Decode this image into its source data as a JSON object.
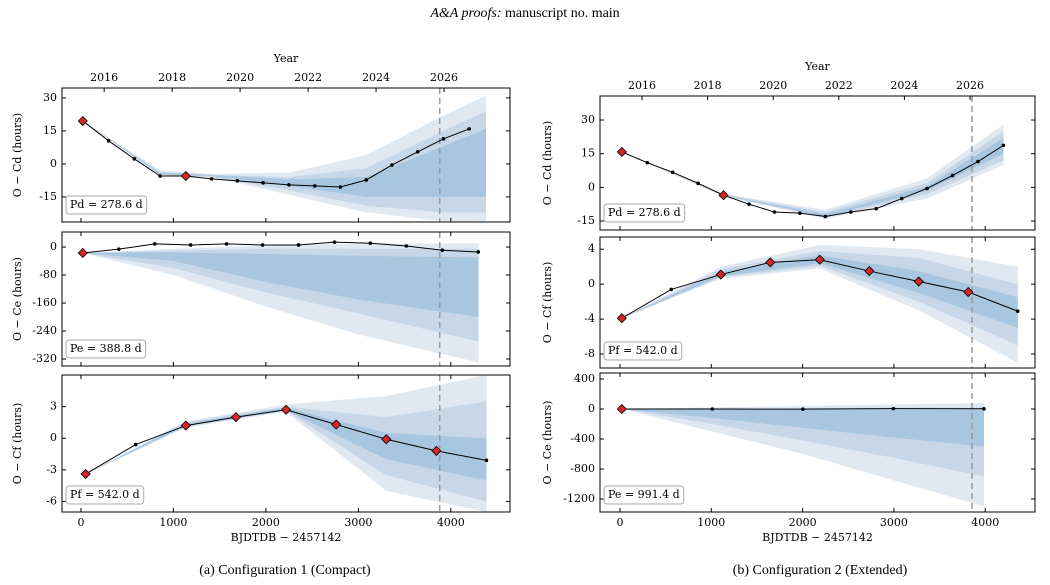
{
  "header_italic": "A&A proofs:",
  "header_rest": "manuscript no. main",
  "captions": [
    "(a) Configuration 1 (Compact)",
    "(b) Configuration 2 (Extended)"
  ],
  "chart_data": [
    {
      "type": "line",
      "x2label": "Year",
      "x2lim": [
        2014.76,
        2027.94
      ],
      "x2ticks": [
        2016,
        2018,
        2020,
        2022,
        2024,
        2026
      ],
      "xlim": [
        -205,
        4640
      ],
      "xticks": [
        0,
        1000,
        2000,
        3000,
        4000
      ],
      "ylim": [
        -26.4,
        34.5
      ],
      "yticks": [
        -15,
        0,
        15,
        30
      ],
      "ylabel": "O − Cd (hours)",
      "annotation": "Pd = 278.6 d",
      "vline": 3880,
      "bands": [
        {
          "color": "#e0e8f2",
          "x": [
            20,
            856,
            1413,
            2249,
            3085,
            3921,
            4380
          ],
          "lower": [
            19.5,
            -5,
            -6,
            -14,
            -22,
            -26,
            -26
          ],
          "upper": [
            19.5,
            -3,
            -4.5,
            -4,
            4,
            22,
            31
          ]
        },
        {
          "color": "#c7d7e8",
          "x": [
            20,
            856,
            1413,
            2249,
            3085,
            3921,
            4380
          ],
          "lower": [
            19.5,
            -5,
            -6,
            -12,
            -19,
            -22,
            -22
          ],
          "upper": [
            19.5,
            -3.5,
            -5,
            -6,
            -2,
            15,
            24
          ]
        },
        {
          "color": "#a8c6df",
          "x": [
            20,
            856,
            1413,
            2249,
            3085,
            3921,
            4380
          ],
          "lower": [
            19.5,
            -4.8,
            -5.5,
            -10,
            -15,
            -15,
            -15
          ],
          "upper": [
            19.5,
            -4,
            -5,
            -7,
            -6,
            8,
            16
          ]
        }
      ],
      "series": [
        {
          "color": "#000000",
          "marker": "dot",
          "x": [
            20,
            299,
            577,
            856,
            1134,
            1413,
            1692,
            1970,
            2249,
            2528,
            2806,
            3085,
            3363,
            3642,
            3921,
            4199
          ],
          "values": [
            19.5,
            10.5,
            2.3,
            -5.5,
            -5.5,
            -6.8,
            -7.7,
            -8.6,
            -9.5,
            -10,
            -10.5,
            -7.3,
            -0.5,
            5.5,
            11.4,
            15.9
          ]
        },
        {
          "color": "#d62728",
          "marker": "diamond",
          "x": [
            20,
            1134
          ],
          "values": [
            19.5,
            -5.5
          ]
        }
      ]
    },
    {
      "type": "line",
      "xlim": [
        -205,
        4640
      ],
      "xticks": [
        0,
        1000,
        2000,
        3000,
        4000
      ],
      "ylim": [
        -340,
        43
      ],
      "yticks": [
        -320,
        -240,
        -160,
        -80,
        0
      ],
      "ylabel": "O − Ce (hours)",
      "annotation": "Pe = 388.8 d",
      "vline": 3880,
      "bands": [
        {
          "color": "#e0e8f2",
          "x": [
            20,
            1000,
            2000,
            3000,
            4300
          ],
          "lower": [
            -17,
            -80,
            -170,
            -250,
            -330
          ],
          "upper": [
            -17,
            -5,
            5,
            10,
            10
          ]
        },
        {
          "color": "#c7d7e8",
          "x": [
            20,
            1000,
            2000,
            3000,
            4300
          ],
          "lower": [
            -17,
            -60,
            -130,
            -190,
            -270
          ],
          "upper": [
            -17,
            -10,
            -5,
            -5,
            -5
          ]
        },
        {
          "color": "#a8c6df",
          "x": [
            20,
            1000,
            2000,
            3000,
            4300
          ],
          "lower": [
            -17,
            -40,
            -100,
            -150,
            -200
          ],
          "upper": [
            -17,
            -15,
            -20,
            -25,
            -30
          ]
        }
      ],
      "series": [
        {
          "color": "#000000",
          "marker": "dot",
          "x": [
            20,
            409,
            798,
            1186,
            1575,
            1964,
            2353,
            2742,
            3130,
            3519,
            3908,
            4297
          ],
          "values": [
            -17,
            -6,
            9,
            6,
            9,
            6,
            6,
            14,
            11,
            3,
            -9,
            -14
          ]
        },
        {
          "color": "#d62728",
          "marker": "diamond",
          "x": [
            20
          ],
          "values": [
            -17
          ]
        }
      ]
    },
    {
      "type": "line",
      "xlabel": "BJDTDB − 2457142",
      "xlim": [
        -205,
        4640
      ],
      "xticks": [
        0,
        1000,
        2000,
        3000,
        4000
      ],
      "ylim": [
        -7,
        6
      ],
      "yticks": [
        -6,
        -3,
        0,
        3
      ],
      "ylabel": "O − Cf (hours)",
      "annotation": "Pf = 542.0 d",
      "vline": 3880,
      "bands": [
        {
          "color": "#e0e8f2",
          "x": [
            50,
            1134,
            2218,
            3302,
            4386
          ],
          "lower": [
            -3.4,
            1.0,
            2.5,
            -5,
            -7
          ],
          "upper": [
            -3.4,
            1.6,
            3.2,
            4,
            6
          ]
        },
        {
          "color": "#c7d7e8",
          "x": [
            50,
            1134,
            2218,
            3302,
            4386
          ],
          "lower": [
            -3.4,
            1.1,
            2.6,
            -3.5,
            -6
          ],
          "upper": [
            -3.4,
            1.5,
            3.0,
            2,
            3.5
          ]
        },
        {
          "color": "#a8c6df",
          "x": [
            50,
            1134,
            2218,
            3302,
            4386
          ],
          "lower": [
            -3.4,
            1.15,
            2.65,
            -2,
            -4
          ],
          "upper": [
            -3.4,
            1.4,
            2.9,
            0.5,
            0
          ]
        }
      ],
      "series": [
        {
          "color": "#000000",
          "marker": "dot",
          "x": [
            50,
            592,
            1134,
            1676,
            2218,
            2760,
            3302,
            3844,
            4386
          ],
          "values": [
            -3.4,
            -0.6,
            1.2,
            2.0,
            2.7,
            1.3,
            -0.1,
            -1.2,
            -2.1
          ]
        },
        {
          "color": "#d62728",
          "marker": "diamond",
          "x": [
            50,
            1134,
            1676,
            2218,
            2760,
            3302,
            3844
          ],
          "values": [
            -3.4,
            1.2,
            2.0,
            2.7,
            1.3,
            -0.1,
            -1.2
          ]
        }
      ]
    },
    {
      "type": "line",
      "x2label": "Year",
      "x2lim": [
        2014.72,
        2027.98
      ],
      "x2ticks": [
        2016,
        2018,
        2020,
        2022,
        2024,
        2026
      ],
      "xlim": [
        -219,
        4545
      ],
      "xticks": [
        0,
        1000,
        2000,
        3000,
        4000
      ],
      "ylim": [
        -19,
        40.7
      ],
      "yticks": [
        -15,
        0,
        15,
        30
      ],
      "ylabel": "O − Cd (hours)",
      "annotation": "Pd = 278.6 d",
      "vline": 3855,
      "bands": [
        {
          "color": "#e0e8f2",
          "x": [
            20,
            1134,
            2249,
            3363,
            4199
          ],
          "lower": [
            15.8,
            -4,
            -14,
            -5,
            10
          ],
          "upper": [
            15.8,
            -3,
            -10,
            4,
            28
          ]
        },
        {
          "color": "#c7d7e8",
          "x": [
            20,
            1134,
            2249,
            3363,
            4199
          ],
          "lower": [
            15.8,
            -3.8,
            -13.5,
            -3,
            12
          ],
          "upper": [
            15.8,
            -3.2,
            -11,
            2,
            25
          ]
        },
        {
          "color": "#a8c6df",
          "x": [
            20,
            1134,
            2249,
            3363,
            4199
          ],
          "lower": [
            15.8,
            -3.6,
            -13,
            -1.5,
            15
          ],
          "upper": [
            15.8,
            -3.4,
            -12,
            0.5,
            22
          ]
        }
      ],
      "series": [
        {
          "color": "#000000",
          "marker": "dot",
          "x": [
            20,
            299,
            577,
            856,
            1134,
            1413,
            1692,
            1970,
            2249,
            2528,
            2806,
            3085,
            3363,
            3642,
            3921,
            4199
          ],
          "values": [
            15.8,
            11,
            6.7,
            1.8,
            -3.5,
            -7.5,
            -11,
            -11.5,
            -13,
            -11,
            -9.5,
            -5,
            -0.5,
            5.3,
            11.5,
            18.7
          ]
        },
        {
          "color": "#d62728",
          "marker": "diamond",
          "x": [
            20,
            1134
          ],
          "values": [
            15.8,
            -3.5
          ]
        }
      ]
    },
    {
      "type": "line",
      "xlim": [
        -219,
        4545
      ],
      "xticks": [
        0,
        1000,
        2000,
        3000,
        4000
      ],
      "ylim": [
        -9.6,
        5.4
      ],
      "yticks": [
        -8,
        -4,
        0,
        4
      ],
      "ylabel": "O − Cf (hours)",
      "annotation": "Pf = 542.0 d",
      "vline": 3855,
      "bands": [
        {
          "color": "#e0e8f2",
          "x": [
            20,
            1104,
            2188,
            3272,
            4356
          ],
          "lower": [
            -3.9,
            0.6,
            1.8,
            -3,
            -9
          ],
          "upper": [
            -3.9,
            2.0,
            4.5,
            4,
            2
          ]
        },
        {
          "color": "#c7d7e8",
          "x": [
            20,
            1104,
            2188,
            3272,
            4356
          ],
          "lower": [
            -3.9,
            0.8,
            2.1,
            -2,
            -7
          ],
          "upper": [
            -3.9,
            1.7,
            3.8,
            3,
            0
          ]
        },
        {
          "color": "#a8c6df",
          "x": [
            20,
            1104,
            2188,
            3272,
            4356
          ],
          "lower": [
            -3.9,
            0.9,
            2.4,
            -1,
            -5
          ],
          "upper": [
            -3.9,
            1.4,
            3.3,
            1.5,
            -1.5
          ]
        }
      ],
      "series": [
        {
          "color": "#000000",
          "marker": "dot",
          "x": [
            20,
            562,
            1104,
            1646,
            2188,
            2730,
            3272,
            3814,
            4356
          ],
          "values": [
            -3.9,
            -0.6,
            1.1,
            2.5,
            2.8,
            1.5,
            0.3,
            -0.9,
            -3.1
          ]
        },
        {
          "color": "#d62728",
          "marker": "diamond",
          "x": [
            20,
            1104,
            1646,
            2188,
            2730,
            3272,
            3814
          ],
          "values": [
            -3.9,
            1.1,
            2.5,
            2.8,
            1.5,
            0.3,
            -0.9
          ]
        }
      ]
    },
    {
      "type": "line",
      "xlabel": "BJDTDB − 2457142",
      "xlim": [
        -219,
        4545
      ],
      "xticks": [
        0,
        1000,
        2000,
        3000,
        4000
      ],
      "ylim": [
        -1373,
        480
      ],
      "yticks": [
        -1200,
        -800,
        -400,
        0,
        400
      ],
      "ylabel": "O − Ce (hours)",
      "annotation": "Pe = 991.4 d",
      "vline": 3855,
      "bands": [
        {
          "color": "#e0e8f2",
          "x": [
            20,
            1011,
            2003,
            2994,
            3986
          ],
          "lower": [
            0,
            -300,
            -600,
            -950,
            -1300
          ],
          "upper": [
            0,
            20,
            40,
            60,
            80
          ]
        },
        {
          "color": "#c7d7e8",
          "x": [
            20,
            1011,
            2003,
            2994,
            3986
          ],
          "lower": [
            0,
            -200,
            -420,
            -650,
            -900
          ],
          "upper": [
            0,
            0,
            10,
            20,
            20
          ]
        },
        {
          "color": "#a8c6df",
          "x": [
            20,
            1011,
            2003,
            2994,
            3986
          ],
          "lower": [
            0,
            -120,
            -250,
            -380,
            -500
          ],
          "upper": [
            0,
            -5,
            -10,
            -10,
            -10
          ]
        }
      ],
      "series": [
        {
          "color": "#000000",
          "marker": "dot",
          "x": [
            20,
            1011,
            2003,
            2994,
            3986
          ],
          "values": [
            0,
            0,
            -2,
            5,
            3
          ]
        },
        {
          "color": "#d62728",
          "marker": "diamond",
          "x": [
            20
          ],
          "values": [
            0
          ]
        }
      ]
    }
  ]
}
